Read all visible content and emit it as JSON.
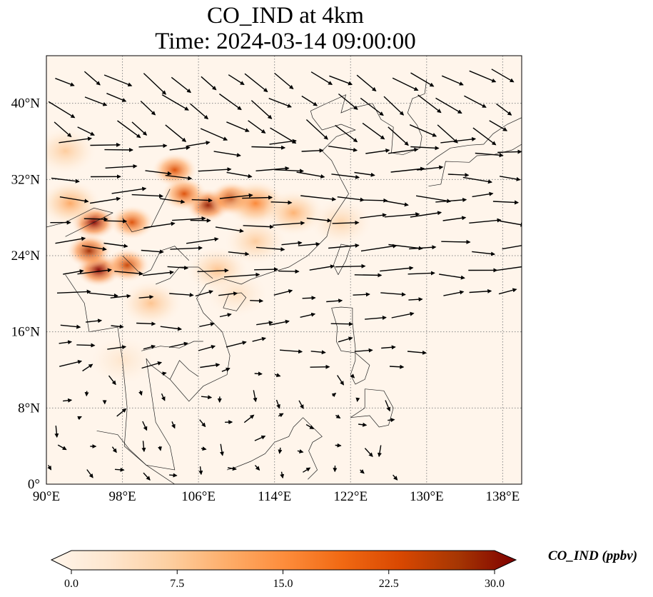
{
  "title_line1": "CO_IND at 4km",
  "title_line2": "Time: 2024-03-14 09:00:00",
  "colorbar": {
    "label": "CO_IND (ppbv)",
    "ticks": [
      "0.0",
      "7.5",
      "15.0",
      "22.5",
      "30.0"
    ],
    "min": 0,
    "max": 30,
    "colormap": [
      "#fff5eb",
      "#fee6ce",
      "#fdd0a2",
      "#fdae6b",
      "#fd8d3c",
      "#f16913",
      "#d94801",
      "#a63603",
      "#7f0000"
    ]
  },
  "map": {
    "lon_range": [
      90,
      140
    ],
    "lat_range": [
      0,
      45
    ],
    "lon_ticks": [
      90,
      98,
      106,
      114,
      122,
      130,
      138
    ],
    "lon_tick_labels": [
      "90°E",
      "98°E",
      "106°E",
      "114°E",
      "122°E",
      "130°E",
      "138°E"
    ],
    "lat_ticks": [
      0,
      8,
      16,
      24,
      32,
      40
    ],
    "lat_tick_labels": [
      "0°",
      "8°N",
      "16°N",
      "24°N",
      "32°N",
      "40°N"
    ],
    "gridlines": true
  },
  "chart_data": {
    "type": "heatmap",
    "title": "CO_IND at 4km\nTime: 2024-03-14 09:00:00",
    "xlabel": "",
    "ylabel": "",
    "x_ticks": [
      "90°E",
      "98°E",
      "106°E",
      "114°E",
      "122°E",
      "130°E",
      "138°E"
    ],
    "y_ticks": [
      "0°",
      "8°N",
      "16°N",
      "24°N",
      "32°N",
      "40°N"
    ],
    "xlim": [
      90,
      140
    ],
    "ylim": [
      0,
      45
    ],
    "value_range": [
      0,
      30
    ],
    "hotspots": [
      {
        "lon": 95.0,
        "lat": 27.5,
        "value": 30
      },
      {
        "lon": 95.5,
        "lat": 22.5,
        "value": 30
      },
      {
        "lon": 94.5,
        "lat": 24.5,
        "value": 27
      },
      {
        "lon": 98.5,
        "lat": 23.0,
        "value": 24
      },
      {
        "lon": 99.0,
        "lat": 27.5,
        "value": 22
      },
      {
        "lon": 103.5,
        "lat": 33.0,
        "value": 22
      },
      {
        "lon": 107.0,
        "lat": 29.3,
        "value": 28
      },
      {
        "lon": 109.5,
        "lat": 30.0,
        "value": 25
      },
      {
        "lon": 104.5,
        "lat": 30.5,
        "value": 22
      },
      {
        "lon": 112.0,
        "lat": 29.5,
        "value": 16
      },
      {
        "lon": 116.0,
        "lat": 28.5,
        "value": 11
      },
      {
        "lon": 121.0,
        "lat": 27.5,
        "value": 7
      },
      {
        "lon": 92.0,
        "lat": 35.0,
        "value": 8
      },
      {
        "lon": 108.0,
        "lat": 22.5,
        "value": 9
      },
      {
        "lon": 101.0,
        "lat": 19.0,
        "value": 9
      },
      {
        "lon": 112.0,
        "lat": 25.5,
        "value": 8
      },
      {
        "lon": 92.5,
        "lat": 29.5,
        "value": 12
      },
      {
        "lon": 98.0,
        "lat": 13.0,
        "value": 4
      },
      {
        "lon": 110.0,
        "lat": 20.0,
        "value": 5
      }
    ],
    "wind_vectors": "field shown as black arrows, predominantly westerly to north-westerly flow"
  }
}
